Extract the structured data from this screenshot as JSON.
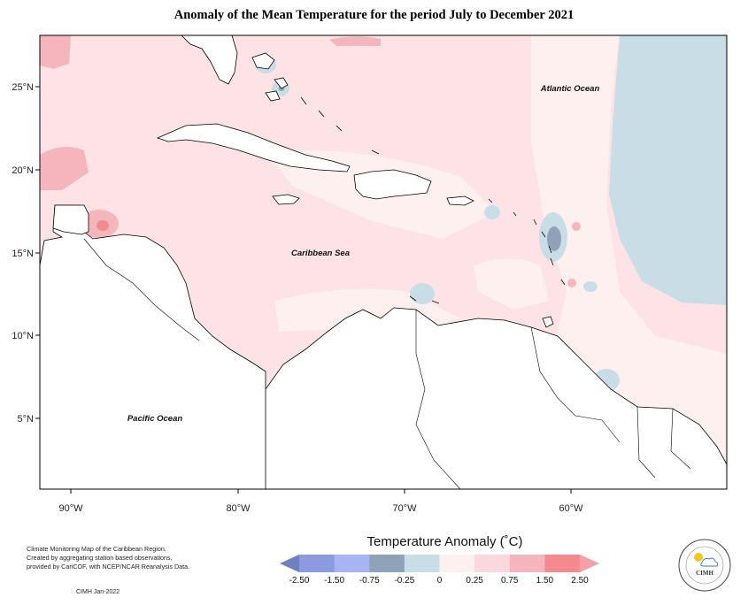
{
  "title": "Anomaly of the Mean Temperature for the period July to December 2021",
  "map": {
    "lon_ticks": [
      "90°W",
      "80°W",
      "70°W",
      "60°W"
    ],
    "lat_ticks": [
      "25°N",
      "20°N",
      "15°N",
      "10°N",
      "5°N"
    ],
    "labels": {
      "atlantic": "Atlantic Ocean",
      "caribbean": "Caribbean Sea",
      "pacific": "Pacific Ocean"
    }
  },
  "legend": {
    "title": "Temperature Anomaly (˚C)",
    "ticks": [
      "-2.50",
      "-1.50",
      "-0.75",
      "-0.25",
      "0",
      "0.25",
      "0.75",
      "1.50",
      "2.50"
    ],
    "colors": [
      "#6f7fbf",
      "#8b9be0",
      "#a8b5f5",
      "#8fa3b8",
      "#c9dde6",
      "#fff0f0",
      "#fbd8de",
      "#f4b6bc",
      "#f48a8f",
      "#f4a0a6"
    ]
  },
  "credits": {
    "line1": "Climate Monitoring Map of the Caribbean Region.",
    "line2": "Created by aggregating station based observations,",
    "line3": "provided by CariCOF, with NCEP/NCAR Reanalysis Data.",
    "signature": "CIMH  Jan-2022"
  },
  "logo": {
    "text": "CIMH"
  }
}
